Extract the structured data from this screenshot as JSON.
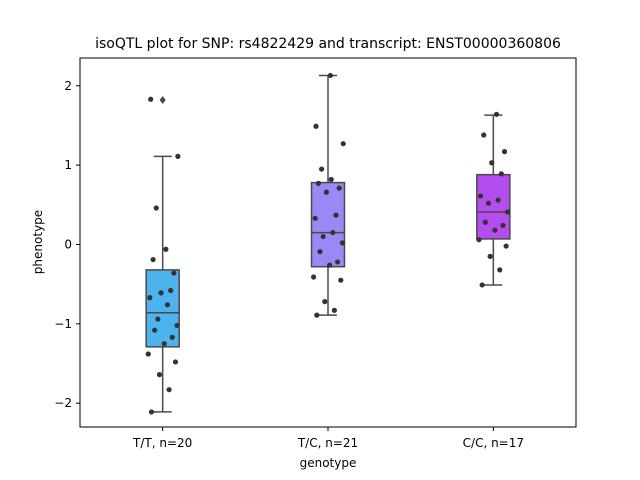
{
  "chart_data": {
    "type": "box",
    "title": "isoQTL plot for SNP: rs4822429 and transcript: ENST00000360806",
    "xlabel": "genotype",
    "ylabel": "phenotype",
    "ylim": [
      -2.3,
      2.35
    ],
    "yticks": [
      -2,
      -1,
      0,
      1,
      2
    ],
    "categories": [
      "T/T, n=20",
      "T/C, n=21",
      "C/C, n=17"
    ],
    "colors": [
      "#4db3ee",
      "#9988f6",
      "#b44cf0"
    ],
    "boxes": [
      {
        "category": "T/T, n=20",
        "whisker_low": -2.11,
        "q1": -1.29,
        "median": -0.86,
        "q3": -0.32,
        "whisker_high": 1.11,
        "outliers": [
          1.82
        ],
        "points": [
          -2.11,
          -1.83,
          -1.64,
          -1.48,
          -1.38,
          -1.25,
          -1.17,
          -1.08,
          -1.02,
          -0.94,
          -0.76,
          -0.67,
          -0.58,
          -0.61,
          -0.36,
          -0.19,
          -0.06,
          0.46,
          1.11,
          1.83
        ]
      },
      {
        "category": "T/C, n=21",
        "whisker_low": -0.89,
        "q1": -0.28,
        "median": 0.15,
        "q3": 0.78,
        "whisker_high": 2.13,
        "outliers": [],
        "points": [
          -0.89,
          -0.83,
          -0.72,
          -0.45,
          -0.41,
          -0.26,
          -0.22,
          -0.09,
          0.02,
          0.1,
          0.15,
          0.33,
          0.37,
          0.66,
          0.71,
          0.77,
          0.82,
          0.95,
          1.27,
          1.49,
          2.13
        ]
      },
      {
        "category": "C/C, n=17",
        "whisker_low": -0.51,
        "q1": 0.07,
        "median": 0.41,
        "q3": 0.88,
        "whisker_high": 1.63,
        "outliers": [],
        "points": [
          -0.51,
          -0.32,
          -0.15,
          -0.02,
          0.06,
          0.18,
          0.24,
          0.28,
          0.41,
          0.52,
          0.56,
          0.61,
          0.89,
          1.03,
          1.17,
          1.38,
          1.64
        ]
      }
    ],
    "grid": false,
    "legend": "none"
  }
}
